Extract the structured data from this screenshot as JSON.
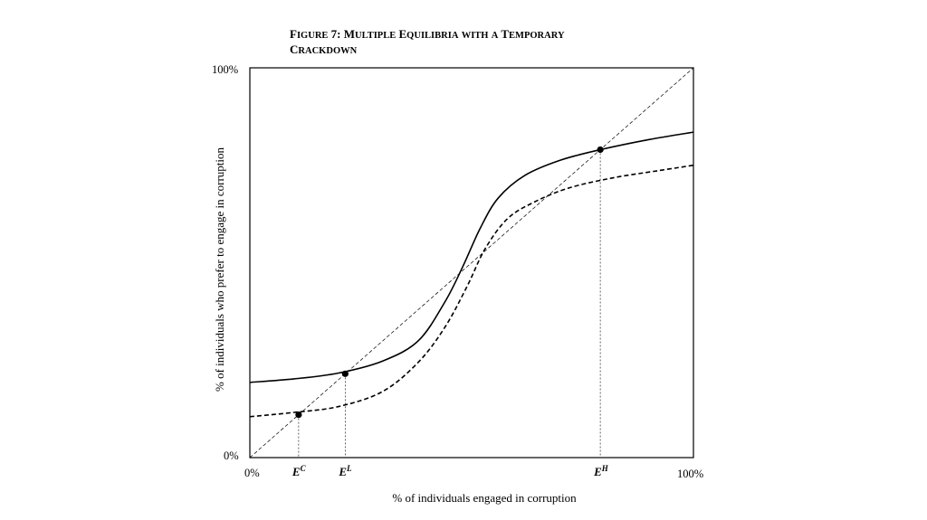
{
  "figure": {
    "title_line1": "Figure 7: Multiple Equilibria with a Temporary",
    "title_line2": "Crackdown"
  },
  "axes": {
    "x_label": "% of individuals engaged in corruption",
    "y_label": "% of individuals who prefer to engage in corruption",
    "x_min_label": "0%",
    "x_max_label": "100%",
    "y_min_label": "0%",
    "y_max_label": "100%",
    "range": [
      0,
      100
    ]
  },
  "equilibria": [
    {
      "id": "EC",
      "base": "E",
      "sup": "C",
      "x": 11,
      "y": 11
    },
    {
      "id": "EL",
      "base": "E",
      "sup": "L",
      "x": 21.5,
      "y": 21.5
    },
    {
      "id": "EH",
      "base": "E",
      "sup": "H",
      "x": 79,
      "y": 79
    }
  ],
  "curves": {
    "solid": [
      [
        0,
        19.3
      ],
      [
        10,
        20.2
      ],
      [
        20,
        21.7
      ],
      [
        30,
        24.8
      ],
      [
        38,
        30
      ],
      [
        44,
        40
      ],
      [
        48,
        49
      ],
      [
        52,
        59
      ],
      [
        56,
        66.6
      ],
      [
        62,
        72.4
      ],
      [
        70,
        76.3
      ],
      [
        79,
        79
      ],
      [
        90,
        81.6
      ],
      [
        100,
        83.5
      ]
    ],
    "dashed": [
      [
        0,
        10.5
      ],
      [
        10,
        11.6
      ],
      [
        20,
        13.1
      ],
      [
        30,
        17
      ],
      [
        38,
        24.5
      ],
      [
        44,
        33.5
      ],
      [
        49,
        44
      ],
      [
        53,
        53.5
      ],
      [
        58,
        61.2
      ],
      [
        64,
        65.5
      ],
      [
        72,
        69.2
      ],
      [
        82,
        71.8
      ],
      [
        92,
        73.6
      ],
      [
        100,
        75
      ]
    ]
  },
  "colors": {
    "ink": "#000000"
  }
}
